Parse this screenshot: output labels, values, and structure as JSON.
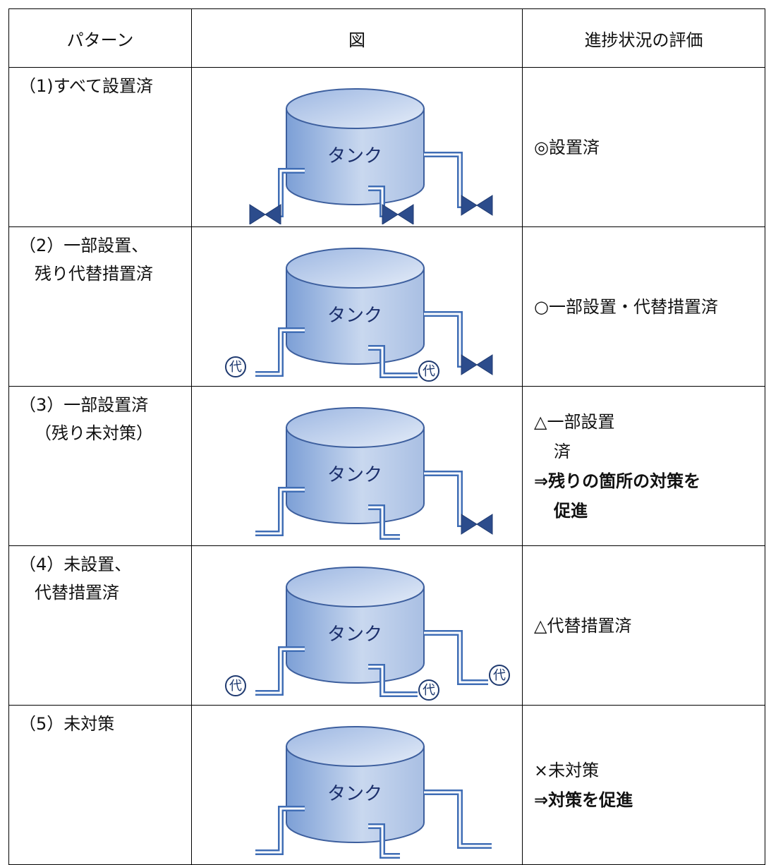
{
  "table": {
    "header": [
      "パターン",
      "図",
      "進捗状況の評価"
    ],
    "rows": [
      {
        "pattern": [
          "（1)すべて設置済"
        ],
        "figure": {
          "label": "タンク",
          "marks": []
        },
        "evaluation": [
          "◎設置済"
        ]
      },
      {
        "pattern": [
          "（2）一部設置、",
          "残り代替措置済"
        ],
        "figure": {
          "label": "タンク",
          "marks": [
            "代",
            "代"
          ]
        },
        "evaluation": [
          "○一部設置・代替措置済"
        ]
      },
      {
        "pattern": [
          "（3）一部設置済",
          "（残り未対策）"
        ],
        "figure": {
          "label": "タンク",
          "marks": []
        },
        "evaluation": [
          "△一部設置",
          "済",
          "⇒残りの箇所の対策を",
          "促進"
        ]
      },
      {
        "pattern": [
          "（4）未設置、",
          "代替措置済"
        ],
        "figure": {
          "label": "タンク",
          "marks": [
            "代",
            "代",
            "代"
          ]
        },
        "evaluation": [
          "△代替措置済"
        ]
      },
      {
        "pattern": [
          "（5）未対策"
        ],
        "figure": {
          "label": "タンク",
          "marks": []
        },
        "evaluation": [
          "×未対策",
          "⇒対策を促進"
        ]
      }
    ]
  }
}
